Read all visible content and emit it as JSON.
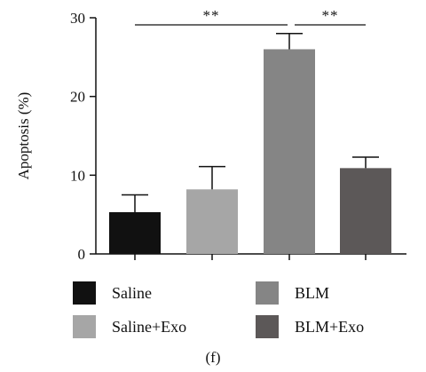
{
  "chart_data": {
    "type": "bar",
    "categories": [
      "Saline",
      "Saline+Exo",
      "BLM",
      "BLM+Exo"
    ],
    "values": [
      5.3,
      8.2,
      26.0,
      10.9
    ],
    "errors": [
      2.2,
      2.9,
      2.0,
      1.4
    ],
    "colors": [
      "#111111",
      "#a6a6a6",
      "#858585",
      "#5c5858"
    ],
    "ylabel": "Apoptosis (%)",
    "ylim": [
      0,
      30
    ],
    "yticks": [
      0,
      10,
      20,
      30
    ],
    "grid": false,
    "legend_position": "bottom",
    "significance": [
      {
        "from": 0,
        "to": 2,
        "label": "**"
      },
      {
        "from": 2,
        "to": 3,
        "label": "**"
      }
    ]
  },
  "panel_label": "(f)"
}
